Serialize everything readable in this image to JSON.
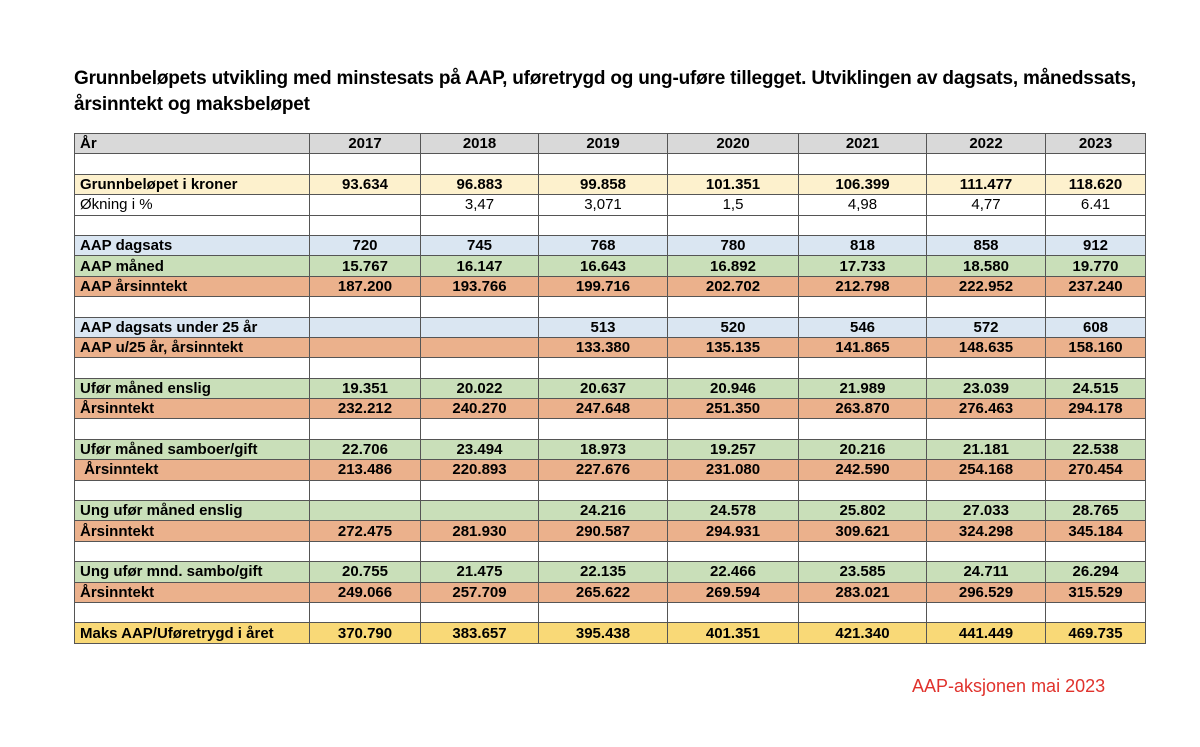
{
  "title": "Grunnbeløpets utvikling med minstesats på AAP, uføretrygd og ung-uføre tillegget. Utviklingen av dagsats, månedssats, årsinntekt og maksbeløpet",
  "table": {
    "header_label": "År",
    "years": [
      "2017",
      "2018",
      "2019",
      "2020",
      "2021",
      "2022",
      "2023"
    ],
    "rows": [
      {
        "style": "spacer",
        "label": "",
        "values": [
          "",
          "",
          "",
          "",
          "",
          "",
          ""
        ]
      },
      {
        "style": "yellow-light",
        "label": "Grunnbeløpet i kroner",
        "values": [
          "93.634",
          "96.883",
          "99.858",
          "101.351",
          "106.399",
          "111.477",
          "118.620"
        ]
      },
      {
        "style": "white",
        "label": "Økning i %",
        "values": [
          "",
          "3,47",
          "3,071",
          "1,5",
          "4,98",
          "4,77",
          "6.41"
        ]
      },
      {
        "style": "spacer",
        "label": "",
        "values": [
          "",
          "",
          "",
          "",
          "",
          "",
          ""
        ]
      },
      {
        "style": "blue",
        "label": "AAP dagsats",
        "values": [
          "720",
          "745",
          "768",
          "780",
          "818",
          "858",
          "912"
        ]
      },
      {
        "style": "green",
        "label": "AAP måned",
        "values": [
          "15.767",
          "16.147",
          "16.643",
          "16.892",
          "17.733",
          "18.580",
          "19.770"
        ]
      },
      {
        "style": "orange",
        "label": "AAP årsinntekt",
        "values": [
          "187.200",
          "193.766",
          "199.716",
          "202.702",
          "212.798",
          "222.952",
          "237.240"
        ]
      },
      {
        "style": "spacer",
        "label": "",
        "values": [
          "",
          "",
          "",
          "",
          "",
          "",
          ""
        ]
      },
      {
        "style": "blue",
        "label": "AAP dagsats under 25 år",
        "values": [
          "",
          "",
          "513",
          "520",
          "546",
          "572",
          "608"
        ]
      },
      {
        "style": "orange",
        "label": "AAP u/25 år, årsinntekt",
        "values": [
          "",
          "",
          "133.380",
          "135.135",
          "141.865",
          "148.635",
          "158.160"
        ]
      },
      {
        "style": "spacer",
        "label": "",
        "values": [
          "",
          "",
          "",
          "",
          "",
          "",
          ""
        ]
      },
      {
        "style": "green",
        "label": "Ufør måned enslig",
        "values": [
          "19.351",
          "20.022",
          "20.637",
          "20.946",
          "21.989",
          "23.039",
          "24.515"
        ]
      },
      {
        "style": "orange",
        "label": "Årsinntekt",
        "values": [
          "232.212",
          "240.270",
          "247.648",
          "251.350",
          "263.870",
          "276.463",
          "294.178"
        ]
      },
      {
        "style": "spacer",
        "label": "",
        "values": [
          "",
          "",
          "",
          "",
          "",
          "",
          ""
        ]
      },
      {
        "style": "green",
        "label": "Ufør måned samboer/gift",
        "values": [
          "22.706",
          "23.494",
          "18.973",
          "19.257",
          "20.216",
          "21.181",
          "22.538"
        ]
      },
      {
        "style": "orange",
        "label": " Årsinntekt",
        "values": [
          "213.486",
          "220.893",
          "227.676",
          "231.080",
          "242.590",
          "254.168",
          "270.454"
        ]
      },
      {
        "style": "spacer",
        "label": "",
        "values": [
          "",
          "",
          "",
          "",
          "",
          "",
          ""
        ]
      },
      {
        "style": "green",
        "label": "Ung ufør måned enslig",
        "values": [
          "",
          "",
          "24.216",
          "24.578",
          "25.802",
          "27.033",
          "28.765"
        ]
      },
      {
        "style": "orange",
        "label": "Årsinntekt",
        "values": [
          "272.475",
          "281.930",
          "290.587",
          "294.931",
          "309.621",
          "324.298",
          "345.184"
        ]
      },
      {
        "style": "spacer",
        "label": "",
        "values": [
          "",
          "",
          "",
          "",
          "",
          "",
          ""
        ]
      },
      {
        "style": "green",
        "label": "Ung ufør mnd. sambo/gift",
        "values": [
          "20.755",
          "21.475",
          "22.135",
          "22.466",
          "23.585",
          "24.711",
          "26.294"
        ]
      },
      {
        "style": "orange",
        "label": "Årsinntekt",
        "values": [
          "249.066",
          "257.709",
          "265.622",
          "269.594",
          "283.021",
          "296.529",
          "315.529"
        ]
      },
      {
        "style": "spacer",
        "label": "",
        "values": [
          "",
          "",
          "",
          "",
          "",
          "",
          ""
        ]
      },
      {
        "style": "gold",
        "label": "Maks AAP/Uføretrygd i året",
        "values": [
          "370.790",
          "383.657",
          "395.438",
          "401.351",
          "421.340",
          "441.449",
          "469.735"
        ]
      }
    ]
  },
  "credit": "AAP-aksjonen mai 2023"
}
